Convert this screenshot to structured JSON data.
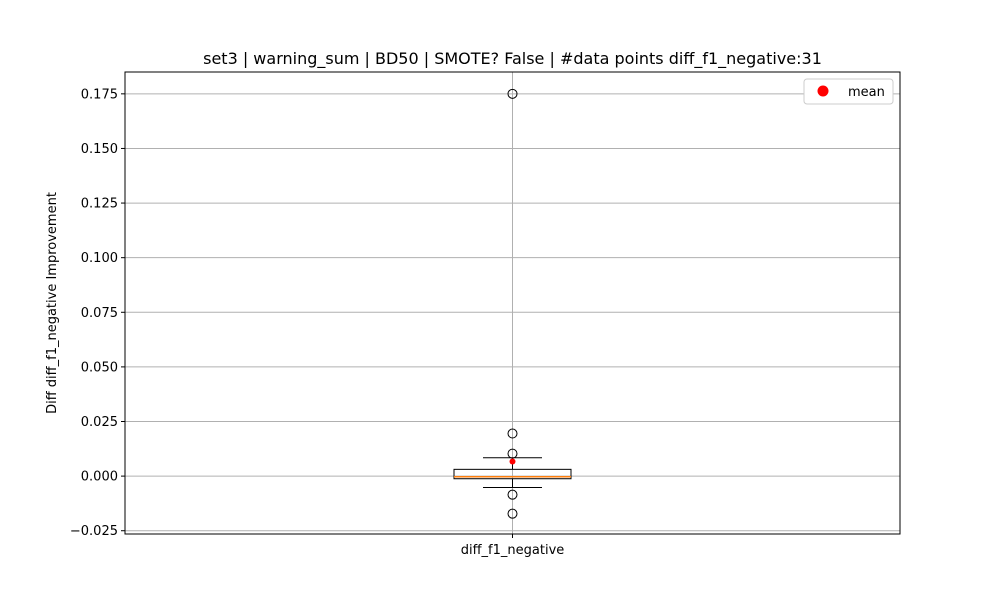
{
  "chart_data": {
    "type": "box",
    "title": "set3 | warning_sum | BD50 | SMOTE? False | #data points diff_f1_negative:31",
    "xlabel": "",
    "ylabel": "Diff diff_f1_negative Improvement",
    "categories": [
      "diff_f1_negative"
    ],
    "ylim": [
      -0.0265,
      0.185
    ],
    "yticks": [
      -0.025,
      0.0,
      0.025,
      0.05,
      0.075,
      0.1,
      0.125,
      0.15,
      0.175
    ],
    "ytick_labels": [
      "−0.025",
      "0.000",
      "0.025",
      "0.050",
      "0.075",
      "0.100",
      "0.125",
      "0.150",
      "0.175"
    ],
    "grid": true,
    "legend": {
      "position": "top-right",
      "entries": [
        {
          "label": "mean",
          "color": "#ff0000",
          "marker": "circle"
        }
      ]
    },
    "boxes": [
      {
        "name": "diff_f1_negative",
        "whisker_low": -0.0052,
        "q1": -0.0012,
        "median": -0.0003,
        "q3": 0.0031,
        "whisker_high": 0.0084,
        "mean": 0.0067,
        "outliers": [
          0.175,
          0.0195,
          0.0103,
          -0.0085,
          -0.0172
        ]
      }
    ],
    "colors": {
      "median": "#ff7f0e",
      "mean": "#ff0000",
      "box": "#000000",
      "grid": "#b0b0b0"
    }
  }
}
